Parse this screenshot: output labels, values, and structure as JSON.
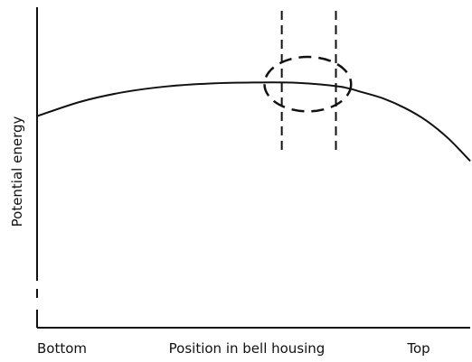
{
  "chart_data": {
    "type": "line",
    "title": "",
    "xlabel": "Position in bell housing",
    "ylabel": "Potential energy",
    "x_tick_labels": [
      "Bottom",
      "Top"
    ],
    "xlim": [
      0,
      1
    ],
    "ylim": [
      0,
      1
    ],
    "grid": false,
    "legend": "none",
    "axis_ticks": false,
    "series": [
      {
        "x": [
          0.0,
          0.1,
          0.2,
          0.3,
          0.4,
          0.5,
          0.6,
          0.7,
          0.75,
          0.8,
          0.85,
          0.9,
          0.95,
          1.0
        ],
        "y": [
          0.66,
          0.705,
          0.735,
          0.753,
          0.762,
          0.765,
          0.764,
          0.752,
          0.735,
          0.715,
          0.685,
          0.645,
          0.59,
          0.52
        ]
      }
    ],
    "annotations": {
      "dashed_vertical_lines_x": [
        0.565,
        0.69
      ],
      "dashed_ellipse": {
        "x_center": 0.625,
        "y_center": 0.76,
        "x_radius": 0.1,
        "y_radius": 0.085
      }
    },
    "colors": {
      "line": "#111111",
      "axes": "#111111",
      "text": "#111111",
      "background": "#ffffff"
    }
  }
}
